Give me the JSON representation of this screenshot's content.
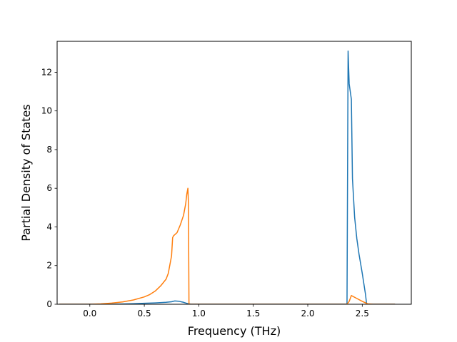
{
  "chart_data": {
    "type": "line",
    "title": "",
    "xlabel": "Frequency (THz)",
    "ylabel": "Partial Density of States",
    "xlim": [
      -0.3,
      2.95
    ],
    "ylim": [
      0,
      13.6
    ],
    "xticks": [
      0.0,
      0.5,
      1.0,
      1.5,
      2.0,
      2.5
    ],
    "xtick_labels": [
      "0.0",
      "0.5",
      "1.0",
      "1.5",
      "2.0",
      "2.5"
    ],
    "yticks": [
      0,
      2,
      4,
      6,
      8,
      10,
      12
    ],
    "ytick_labels": [
      "0",
      "2",
      "4",
      "6",
      "8",
      "10",
      "12"
    ],
    "grid": false,
    "legend": false,
    "series": [
      {
        "color": "#1f77b4",
        "x": [
          -0.28,
          0.0,
          0.2,
          0.4,
          0.5,
          0.6,
          0.7,
          0.75,
          0.78,
          0.82,
          0.86,
          0.9,
          0.93,
          1.2,
          1.5,
          2.0,
          2.3,
          2.36,
          2.37,
          2.38,
          2.4,
          2.41,
          2.43,
          2.45,
          2.47,
          2.5,
          2.53,
          2.54,
          2.6,
          2.8
        ],
        "y": [
          0,
          0,
          0,
          0.03,
          0.05,
          0.07,
          0.1,
          0.13,
          0.17,
          0.15,
          0.1,
          0.03,
          0,
          0,
          0,
          0,
          0,
          0,
          13.1,
          11.4,
          10.6,
          6.5,
          4.5,
          3.4,
          2.6,
          1.6,
          0.5,
          0,
          0,
          0
        ]
      },
      {
        "color": "#ff7f0e",
        "x": [
          -0.28,
          0.0,
          0.1,
          0.2,
          0.3,
          0.4,
          0.5,
          0.55,
          0.6,
          0.65,
          0.7,
          0.72,
          0.75,
          0.76,
          0.77,
          0.8,
          0.83,
          0.86,
          0.88,
          0.89,
          0.9,
          0.905,
          0.91,
          1.2,
          1.5,
          2.0,
          2.36,
          2.38,
          2.4,
          2.45,
          2.5,
          2.55,
          2.6,
          2.8
        ],
        "y": [
          0,
          0,
          0.02,
          0.06,
          0.12,
          0.22,
          0.38,
          0.5,
          0.68,
          0.95,
          1.3,
          1.6,
          2.5,
          3.45,
          3.55,
          3.7,
          4.1,
          4.6,
          5.2,
          5.7,
          6.0,
          5.2,
          0,
          0,
          0,
          0,
          0,
          0.15,
          0.45,
          0.3,
          0.15,
          0.02,
          0,
          0
        ]
      }
    ]
  }
}
